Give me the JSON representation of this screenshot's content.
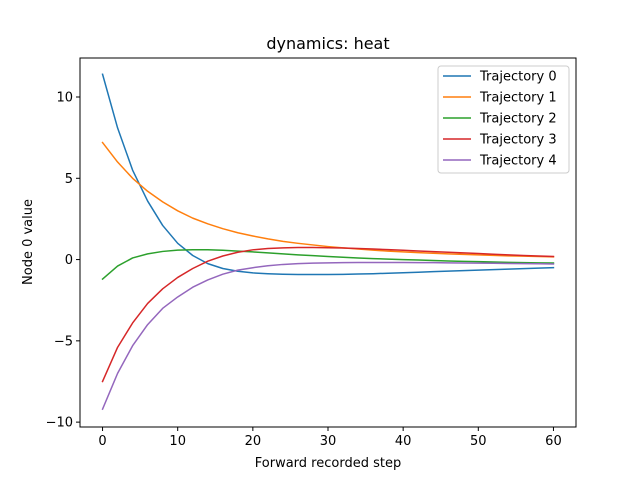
{
  "chart_data": {
    "type": "line",
    "title": "dynamics: heat",
    "xlabel": "Forward recorded step",
    "ylabel": "Node 0 value",
    "xlim": [
      -3,
      63
    ],
    "ylim": [
      -10.3,
      12.4
    ],
    "xticks": [
      0,
      10,
      20,
      30,
      40,
      50,
      60
    ],
    "xtick_labels": [
      "0",
      "10",
      "20",
      "30",
      "40",
      "50",
      "60"
    ],
    "yticks": [
      -10,
      -5,
      0,
      5,
      10
    ],
    "ytick_labels": [
      "−10",
      "−5",
      "0",
      "5",
      "10"
    ],
    "grid": false,
    "legend_position": "top-right",
    "x": [
      0,
      2,
      4,
      6,
      8,
      10,
      12,
      14,
      16,
      18,
      20,
      22,
      24,
      26,
      28,
      30,
      32,
      34,
      36,
      38,
      40,
      42,
      44,
      46,
      48,
      50,
      52,
      54,
      56,
      58,
      60
    ],
    "series": [
      {
        "name": "Trajectory 0",
        "color": "#1f77b4",
        "values": [
          11.4,
          8.1,
          5.5,
          3.6,
          2.1,
          1.0,
          0.25,
          -0.25,
          -0.55,
          -0.72,
          -0.82,
          -0.87,
          -0.9,
          -0.92,
          -0.92,
          -0.92,
          -0.91,
          -0.89,
          -0.87,
          -0.84,
          -0.81,
          -0.78,
          -0.74,
          -0.71,
          -0.68,
          -0.65,
          -0.62,
          -0.59,
          -0.56,
          -0.53,
          -0.5
        ]
      },
      {
        "name": "Trajectory 1",
        "color": "#ff7f0e",
        "values": [
          7.2,
          6.0,
          5.0,
          4.2,
          3.55,
          3.0,
          2.55,
          2.2,
          1.9,
          1.65,
          1.45,
          1.27,
          1.12,
          1.0,
          0.9,
          0.8,
          0.72,
          0.65,
          0.58,
          0.52,
          0.47,
          0.43,
          0.39,
          0.35,
          0.32,
          0.29,
          0.26,
          0.23,
          0.21,
          0.19,
          0.17
        ]
      },
      {
        "name": "Trajectory 2",
        "color": "#2ca02c",
        "values": [
          -1.2,
          -0.4,
          0.1,
          0.35,
          0.5,
          0.58,
          0.6,
          0.6,
          0.57,
          0.52,
          0.47,
          0.41,
          0.35,
          0.29,
          0.24,
          0.19,
          0.14,
          0.1,
          0.06,
          0.03,
          0.0,
          -0.03,
          -0.06,
          -0.09,
          -0.11,
          -0.13,
          -0.15,
          -0.17,
          -0.19,
          -0.2,
          -0.21
        ]
      },
      {
        "name": "Trajectory 3",
        "color": "#d62728",
        "values": [
          -7.5,
          -5.4,
          -3.9,
          -2.7,
          -1.8,
          -1.1,
          -0.55,
          -0.1,
          0.22,
          0.45,
          0.6,
          0.68,
          0.72,
          0.74,
          0.74,
          0.73,
          0.71,
          0.68,
          0.65,
          0.61,
          0.57,
          0.53,
          0.49,
          0.45,
          0.41,
          0.37,
          0.33,
          0.29,
          0.25,
          0.22,
          0.19
        ]
      },
      {
        "name": "Trajectory 4",
        "color": "#9467bd",
        "values": [
          -9.2,
          -7.0,
          -5.3,
          -4.0,
          -3.0,
          -2.3,
          -1.7,
          -1.25,
          -0.9,
          -0.65,
          -0.5,
          -0.38,
          -0.3,
          -0.25,
          -0.22,
          -0.2,
          -0.19,
          -0.18,
          -0.18,
          -0.18,
          -0.18,
          -0.19,
          -0.19,
          -0.2,
          -0.21,
          -0.22,
          -0.23,
          -0.24,
          -0.25,
          -0.26,
          -0.27
        ]
      }
    ]
  }
}
